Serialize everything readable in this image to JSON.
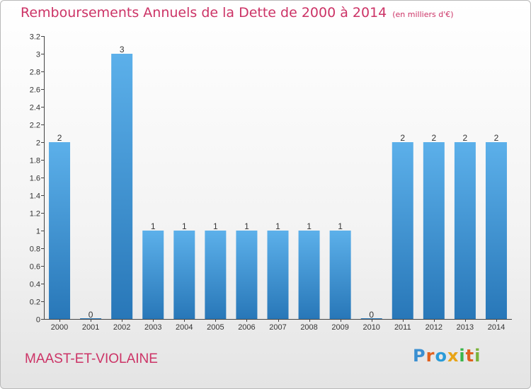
{
  "header": {
    "title": "Remboursements Annuels de la Dette de 2000 à 2014",
    "subtitle": "(en milliers d'€)"
  },
  "commune": "MAAST-ET-VIOLAINE",
  "logo": {
    "text": "Proxiti",
    "colors": [
      "#3a8fd1",
      "#e0611e",
      "#2a9bd8",
      "#e8a416",
      "#3ab54a",
      "#e0611e",
      "#7ab33a"
    ]
  },
  "colors": {
    "accent": "#cc3366",
    "bar": "#4aa3e0",
    "bar_dark": "#2877b8"
  },
  "chart_data": {
    "type": "bar",
    "title": "Remboursements Annuels de la Dette de 2000 à 2014",
    "subtitle": "(en milliers d'€)",
    "xlabel": "",
    "ylabel": "",
    "categories": [
      "2000",
      "2001",
      "2002",
      "2003",
      "2004",
      "2005",
      "2006",
      "2007",
      "2008",
      "2009",
      "2010",
      "2011",
      "2012",
      "2013",
      "2014"
    ],
    "values": [
      2,
      0,
      3,
      1,
      1,
      1,
      1,
      1,
      1,
      1,
      0,
      2,
      2,
      2,
      2
    ],
    "data_labels": [
      "2",
      "0",
      "3",
      "1",
      "1",
      "1",
      "1",
      "1",
      "1",
      "1",
      "0",
      "2",
      "2",
      "2",
      "2"
    ],
    "ylim": [
      0,
      3.2
    ],
    "yticks": [
      0,
      0.2,
      0.4,
      0.6,
      0.8,
      1,
      1.2,
      1.4,
      1.6,
      1.8,
      2,
      2.2,
      2.4,
      2.6,
      2.8,
      3,
      3.2
    ],
    "ytick_labels": [
      "0",
      "0.2",
      "0.4",
      "0.6",
      "0.8",
      "1",
      "1.2",
      "1.4",
      "1.6",
      "1.8",
      "2",
      "2.2",
      "2.4",
      "2.6",
      "2.8",
      "3",
      "3.2"
    ],
    "grid": false
  }
}
